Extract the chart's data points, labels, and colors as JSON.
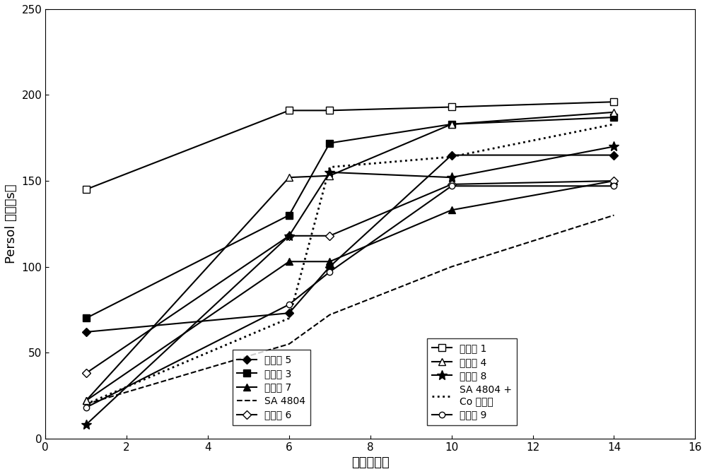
{
  "series": {
    "实施例 5": {
      "x": [
        1,
        6,
        7,
        10,
        14
      ],
      "y": [
        62,
        73,
        100,
        165,
        165
      ],
      "color": "black",
      "linestyle": "-",
      "marker": "D",
      "markersize": 6,
      "markerfacecolor": "black",
      "linewidth": 1.5,
      "zorder": 5
    },
    "实施例 3": {
      "x": [
        1,
        6,
        7,
        10,
        14
      ],
      "y": [
        70,
        130,
        172,
        183,
        187
      ],
      "color": "black",
      "linestyle": "-",
      "marker": "s",
      "markersize": 7,
      "markerfacecolor": "black",
      "linewidth": 1.5,
      "zorder": 5
    },
    "实施例 7": {
      "x": [
        1,
        6,
        7,
        10,
        14
      ],
      "y": [
        22,
        103,
        103,
        133,
        150
      ],
      "color": "black",
      "linestyle": "-",
      "marker": "^",
      "markersize": 7,
      "markerfacecolor": "black",
      "linewidth": 1.5,
      "zorder": 5
    },
    "SA 4804": {
      "x": [
        1,
        6,
        7,
        10,
        14
      ],
      "y": [
        20,
        55,
        72,
        100,
        130
      ],
      "color": "black",
      "linestyle": "--",
      "marker": "",
      "markersize": 0,
      "markerfacecolor": "black",
      "linewidth": 1.5,
      "zorder": 4
    },
    "实施例 6": {
      "x": [
        1,
        6,
        7,
        10,
        14
      ],
      "y": [
        38,
        118,
        118,
        148,
        150
      ],
      "color": "black",
      "linestyle": "-",
      "marker": "D",
      "markersize": 6,
      "markerfacecolor": "white",
      "linewidth": 1.5,
      "zorder": 5
    },
    "实施例 1": {
      "x": [
        1,
        6,
        7,
        10,
        14
      ],
      "y": [
        145,
        191,
        191,
        193,
        196
      ],
      "color": "black",
      "linestyle": "-",
      "marker": "s",
      "markersize": 7,
      "markerfacecolor": "white",
      "linewidth": 1.5,
      "zorder": 5
    },
    "实施例 4": {
      "x": [
        1,
        6,
        7,
        10,
        14
      ],
      "y": [
        22,
        152,
        153,
        183,
        190
      ],
      "color": "black",
      "linestyle": "-",
      "marker": "^",
      "markersize": 7,
      "markerfacecolor": "white",
      "linewidth": 1.5,
      "zorder": 5
    },
    "实施例 8": {
      "x": [
        1,
        6,
        7,
        10,
        14
      ],
      "y": [
        8,
        118,
        155,
        152,
        170
      ],
      "color": "black",
      "linestyle": "-",
      "marker": "*",
      "markersize": 10,
      "markerfacecolor": "black",
      "linewidth": 1.5,
      "zorder": 5
    },
    "SA 4804 +\nCo 催干剂": {
      "x": [
        1,
        6,
        7,
        10,
        14
      ],
      "y": [
        20,
        70,
        158,
        164,
        183
      ],
      "color": "black",
      "linestyle": ":",
      "marker": "",
      "markersize": 0,
      "markerfacecolor": "black",
      "linewidth": 2.0,
      "zorder": 4
    },
    "实施例 9": {
      "x": [
        1,
        6,
        7,
        10,
        14
      ],
      "y": [
        18,
        78,
        97,
        147,
        147
      ],
      "color": "black",
      "linestyle": "-",
      "marker": "o",
      "markersize": 6,
      "markerfacecolor": "white",
      "linewidth": 1.5,
      "zorder": 5
    }
  },
  "xlabel": "时间（天）",
  "ylabel": "Persol 硬度（s）",
  "xlim": [
    0,
    16
  ],
  "ylim": [
    0,
    250
  ],
  "xticks": [
    0,
    2,
    4,
    6,
    8,
    10,
    12,
    14,
    16
  ],
  "yticks": [
    0,
    50,
    100,
    150,
    200,
    250
  ],
  "legend_order_left": [
    "实施例 5",
    "实施例 3",
    "实施例 7",
    "SA 4804",
    "实施例 6"
  ],
  "legend_order_right": [
    "实施例 1",
    "实施例 4",
    "实施例 8",
    "SA 4804 +\nCo 催干剂",
    "实施例 9"
  ],
  "figsize": [
    10.0,
    6.71
  ],
  "dpi": 100,
  "background_color": "white"
}
